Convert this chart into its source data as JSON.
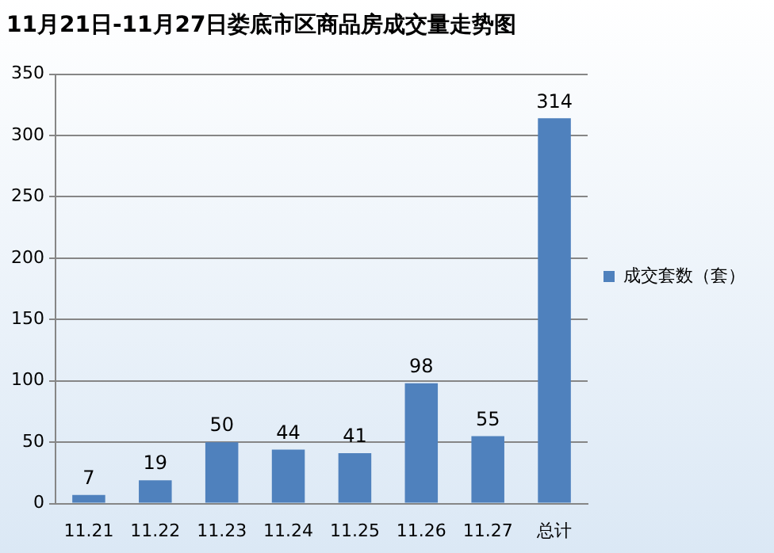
{
  "chart_data": {
    "type": "bar",
    "title": "11月21日-11月27日娄底市区商品房成交量走势图",
    "categories": [
      "11.21",
      "11.22",
      "11.23",
      "11.24",
      "11.25",
      "11.26",
      "11.27",
      "总计"
    ],
    "series": [
      {
        "name": "成交套数（套）",
        "color": "#4f81bd",
        "values": [
          7,
          19,
          50,
          44,
          41,
          98,
          55,
          314
        ]
      }
    ],
    "ylim": [
      0,
      350
    ],
    "yticks": [
      0,
      50,
      100,
      150,
      200,
      250,
      300,
      350
    ],
    "grid": "y",
    "legend": "right",
    "data_labels": true
  }
}
